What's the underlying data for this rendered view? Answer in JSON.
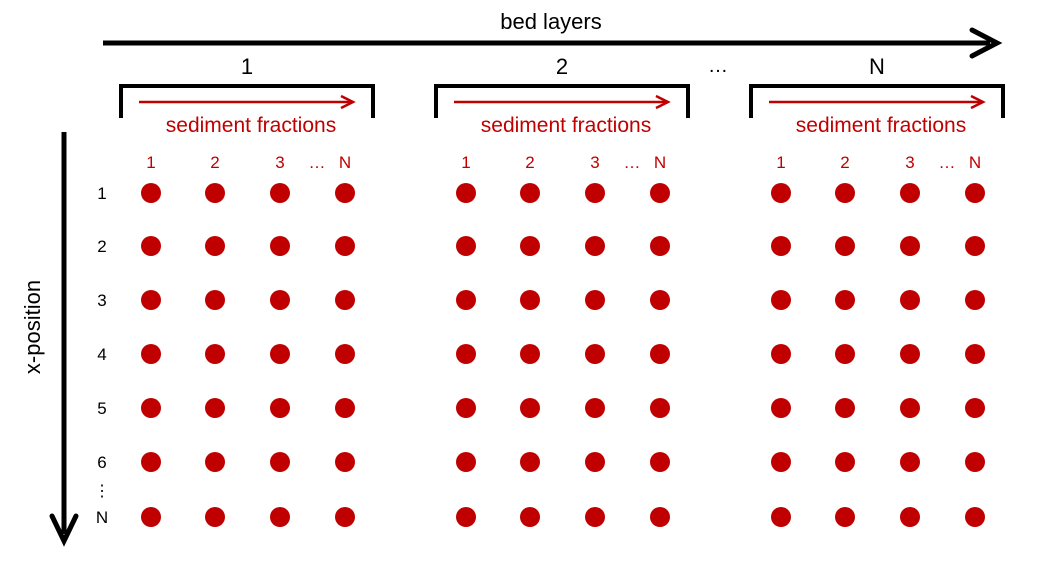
{
  "colors": {
    "ink": "#000000",
    "accent": "#c00000"
  },
  "top_axis": {
    "label": "bed layers"
  },
  "side_axis": {
    "label": "x-position"
  },
  "layer_ellipsis": "…",
  "layers": [
    {
      "label": "1",
      "fraction_label": "sediment fractions",
      "fraction_ticks": [
        "1",
        "2",
        "3",
        "…",
        "N"
      ]
    },
    {
      "label": "2",
      "fraction_label": "sediment fractions",
      "fraction_ticks": [
        "1",
        "2",
        "3",
        "…",
        "N"
      ]
    },
    {
      "label": "N",
      "fraction_label": "sediment fractions",
      "fraction_ticks": [
        "1",
        "2",
        "3",
        "…",
        "N"
      ]
    }
  ],
  "rows": [
    "1",
    "2",
    "3",
    "4",
    "5",
    "6",
    "N"
  ],
  "row_ellipsis": "⋮"
}
